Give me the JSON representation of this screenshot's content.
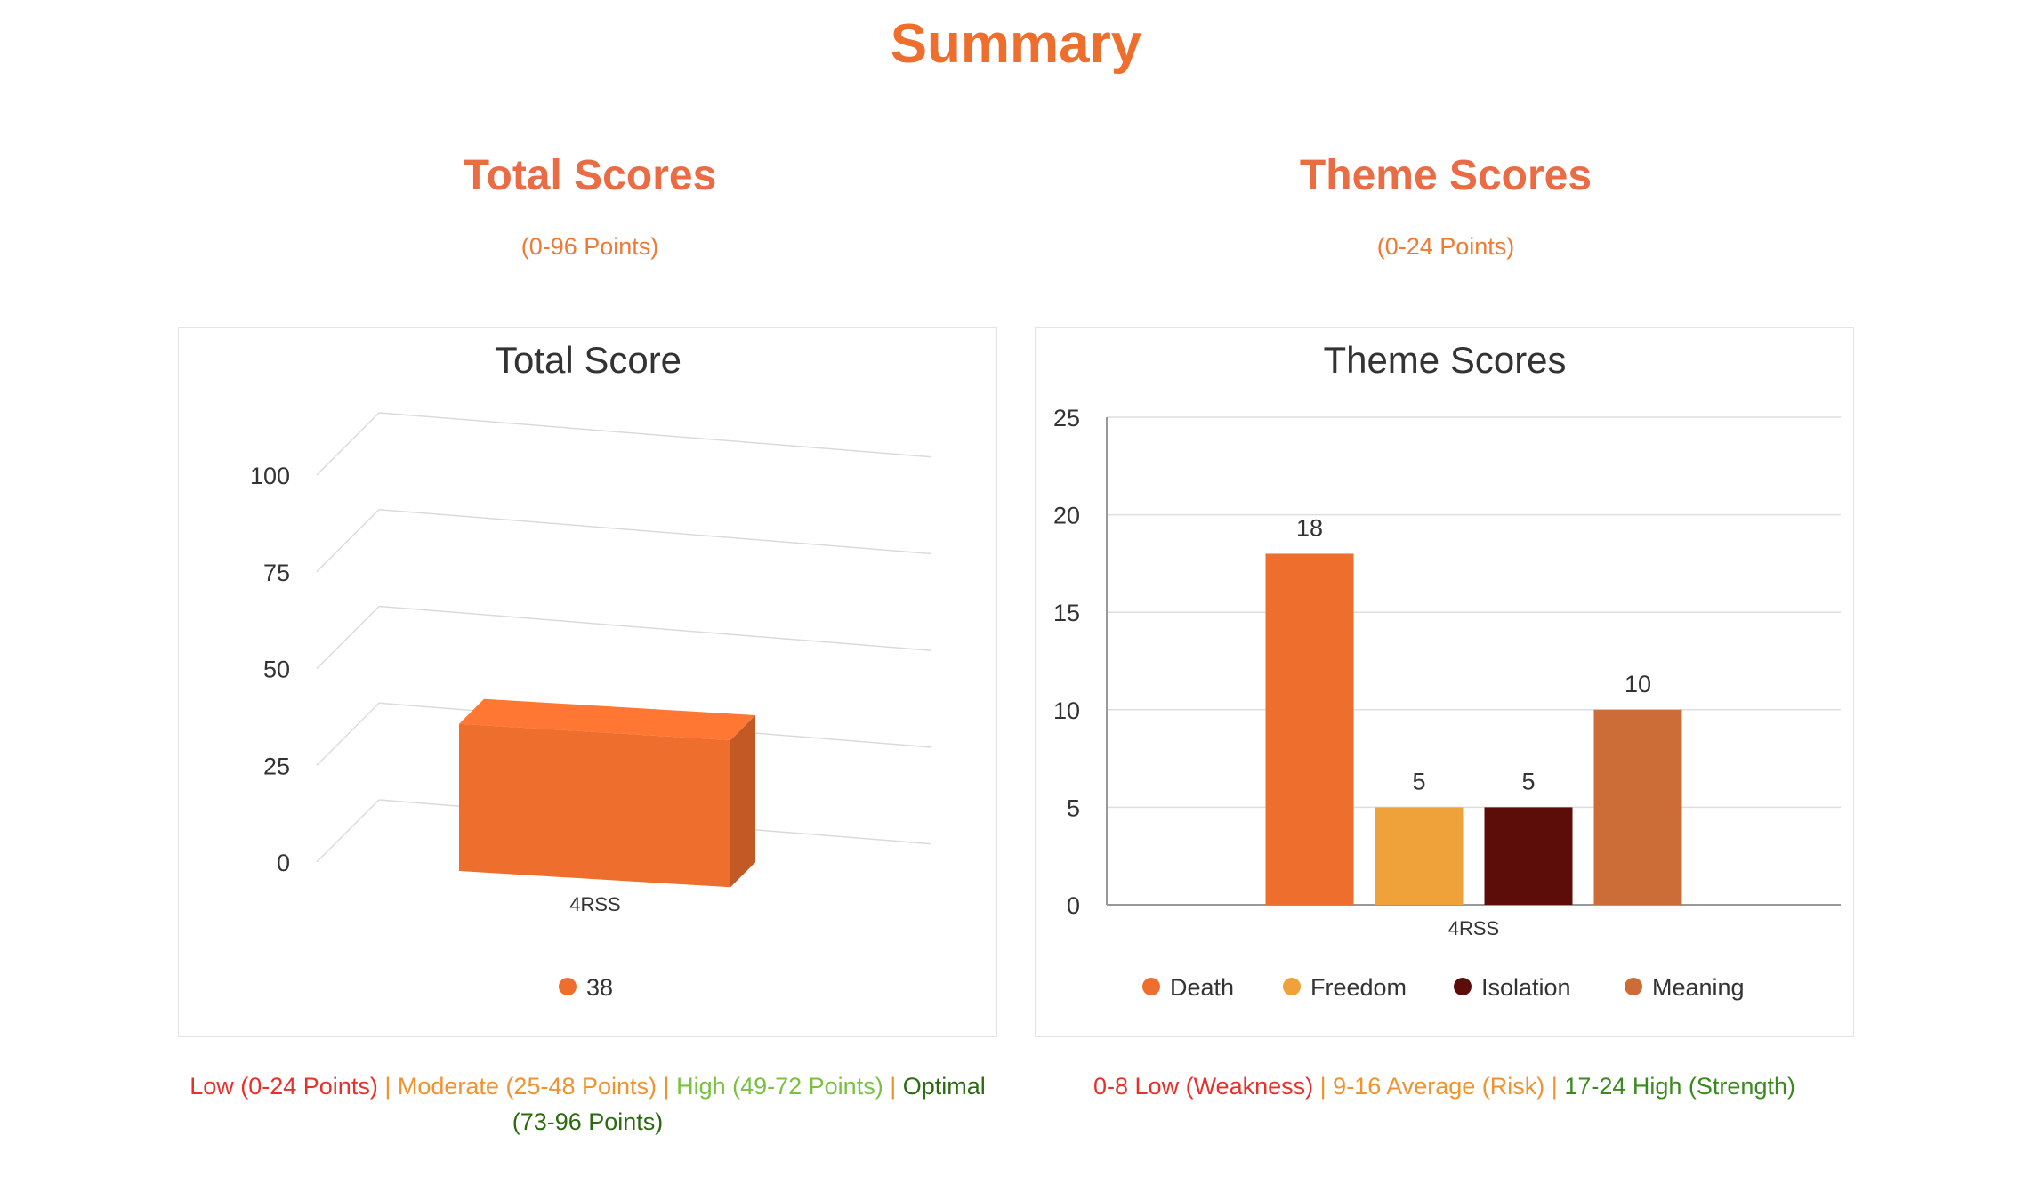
{
  "page": {
    "title": "Summary"
  },
  "total_section": {
    "title": "Total Scores",
    "subtitle": "(0-96 Points)",
    "ranges": {
      "low": "Low (0-24 Points)",
      "moderate": "Moderate (25-48 Points)",
      "high": "High (49-72 Points)",
      "optimal": "Optimal",
      "optimal_range": "(73-96 Points)",
      "separator": "|"
    }
  },
  "theme_section": {
    "title": "Theme Scores",
    "subtitle": "(0-24 Points)",
    "ranges": {
      "low": "0-8 Low (Weakness)",
      "average": "9-16 Average (Risk)",
      "high": "17-24 High (Strength)",
      "separator": "|"
    }
  },
  "chart_data": [
    {
      "type": "bar",
      "style": "3d",
      "title": "Total Score",
      "categories": [
        "4RSS"
      ],
      "series": [
        {
          "name": "38",
          "values": [
            38
          ],
          "color": "#ee6e2e"
        }
      ],
      "yticks": [
        "0",
        "25",
        "50",
        "75",
        "100"
      ],
      "ylim": [
        0,
        100
      ],
      "grid": true,
      "legend": "bottom"
    },
    {
      "type": "bar",
      "title": "Theme Scores",
      "categories": [
        "4RSS"
      ],
      "series": [
        {
          "name": "Death",
          "values": [
            18
          ],
          "color": "#ee6e2e"
        },
        {
          "name": "Freedom",
          "values": [
            5
          ],
          "color": "#f0a23a"
        },
        {
          "name": "Isolation",
          "values": [
            5
          ],
          "color": "#5c0d0a"
        },
        {
          "name": "Meaning",
          "values": [
            10
          ],
          "color": "#cc6c37"
        }
      ],
      "data_labels": [
        "18",
        "5",
        "5",
        "10"
      ],
      "yticks": [
        "0",
        "5",
        "10",
        "15",
        "20",
        "25"
      ],
      "ylim": [
        0,
        25
      ],
      "grid": true,
      "legend": "bottom"
    }
  ]
}
